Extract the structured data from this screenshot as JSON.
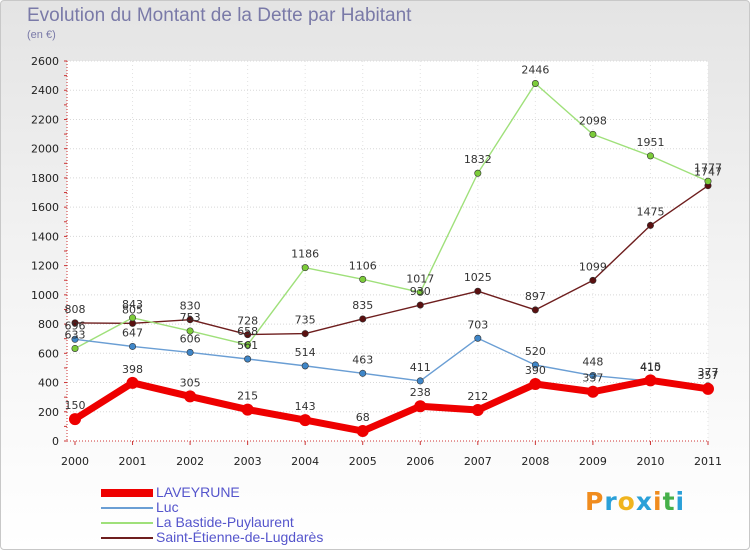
{
  "title": "Evolution du Montant de la Dette par Habitant",
  "subtitle": "(en €)",
  "logo_text": "Proxiti",
  "logo_colors": [
    "#f08c1e",
    "#2aa0d8",
    "#f0b41e",
    "#2aa0d8",
    "#f08c1e",
    "#46b04a",
    "#2aa0d8"
  ],
  "chart_data": {
    "type": "line",
    "x": [
      2000,
      2001,
      2002,
      2003,
      2004,
      2005,
      2006,
      2007,
      2008,
      2009,
      2010,
      2011
    ],
    "ylim": [
      0,
      2600
    ],
    "yticks": [
      0,
      200,
      400,
      600,
      800,
      1000,
      1200,
      1400,
      1600,
      1800,
      2000,
      2200,
      2400,
      2600
    ],
    "grid": true,
    "legend_position": "bottom-left",
    "series": [
      {
        "name": "Saint-Étienne-de-Lugdarès",
        "color": "#6e1e1e",
        "marker": "#5a1010",
        "values": [
          808,
          805,
          830,
          728,
          735,
          835,
          930,
          1025,
          897,
          1099,
          1475,
          1747
        ]
      },
      {
        "name": "La Bastide-Puylaurent",
        "color": "#9fe07a",
        "marker": "#7ccc3a",
        "values": [
          633,
          843,
          753,
          658,
          1186,
          1106,
          1017,
          1832,
          2446,
          2098,
          1951,
          1777
        ]
      },
      {
        "name": "Luc",
        "color": "#6a9ed4",
        "marker": "#3f86c8",
        "values": [
          696,
          647,
          606,
          561,
          514,
          463,
          411,
          703,
          520,
          448,
          410,
          377
        ]
      },
      {
        "name": "LAVEYRUNE",
        "color": "#ee0000",
        "marker": "#ee0000",
        "values": [
          150,
          398,
          305,
          215,
          143,
          68,
          238,
          212,
          390,
          337,
          415,
          357
        ]
      }
    ]
  }
}
